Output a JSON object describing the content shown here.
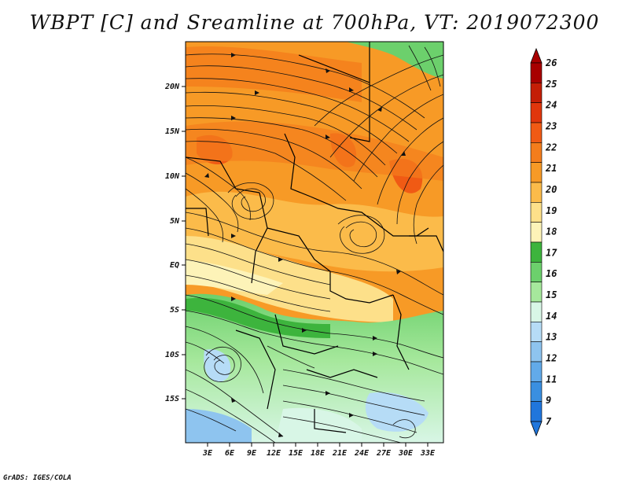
{
  "title": "WBPT [C] and Sreamline at 700hPa, VT: 2019072300",
  "credit": "GrADS: IGES/COLA",
  "map": {
    "lat_labels": [
      "20N",
      "15N",
      "10N",
      "5N",
      "EQ",
      "5S",
      "10S",
      "15S"
    ],
    "lon_labels": [
      "3E",
      "6E",
      "9E",
      "12E",
      "15E",
      "18E",
      "21E",
      "24E",
      "27E",
      "30E",
      "33E"
    ]
  },
  "colorbar": {
    "labels": [
      "26",
      "25",
      "24",
      "23",
      "22",
      "21",
      "20",
      "19",
      "18",
      "17",
      "16",
      "15",
      "14",
      "13",
      "12",
      "11",
      "9",
      "7"
    ],
    "colors": [
      "#a80000",
      "#c41e06",
      "#e0360c",
      "#f05a14",
      "#f47d1c",
      "#f79a26",
      "#fbbb4a",
      "#fde08a",
      "#fdf3b8",
      "#3db43d",
      "#6cd06c",
      "#a6e89c",
      "#d8f6e6",
      "#b6dcf6",
      "#8ec4ef",
      "#62aae9",
      "#3a8fe0",
      "#2076dc"
    ]
  },
  "legend_colors": {
    "frame": "#000000"
  }
}
